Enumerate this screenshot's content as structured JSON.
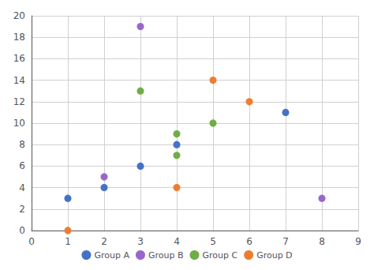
{
  "chart_data": {
    "type": "scatter",
    "series": [
      {
        "name": "Group A",
        "color": "#4472c4",
        "x": [
          1,
          2,
          3,
          4,
          7
        ],
        "values": [
          3,
          4,
          6,
          8,
          11
        ]
      },
      {
        "name": "Group B",
        "color": "#9966cc",
        "x": [
          2,
          3,
          8
        ],
        "values": [
          5,
          19,
          3
        ]
      },
      {
        "name": "Group C",
        "color": "#70ad47",
        "x": [
          3,
          4,
          4,
          5
        ],
        "values": [
          13,
          9,
          7,
          10
        ]
      },
      {
        "name": "Group D",
        "color": "#ed7d31",
        "x": [
          1,
          4,
          5,
          6
        ],
        "values": [
          0,
          4,
          14,
          12
        ]
      }
    ],
    "xlim": [
      0,
      9
    ],
    "ylim": [
      0,
      20
    ],
    "xticks": [
      0,
      1,
      2,
      3,
      4,
      5,
      6,
      7,
      8,
      9
    ],
    "yticks": [
      0,
      2,
      4,
      6,
      8,
      10,
      12,
      14,
      16,
      18,
      20
    ],
    "grid": true,
    "legend": "bottom"
  }
}
